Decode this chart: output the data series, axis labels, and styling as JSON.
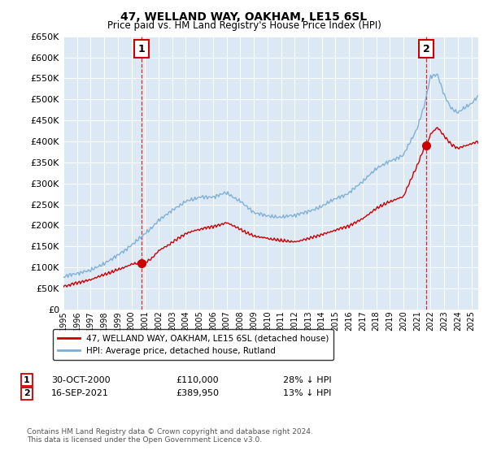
{
  "title": "47, WELLAND WAY, OAKHAM, LE15 6SL",
  "subtitle": "Price paid vs. HM Land Registry's House Price Index (HPI)",
  "legend_line1": "47, WELLAND WAY, OAKHAM, LE15 6SL (detached house)",
  "legend_line2": "HPI: Average price, detached house, Rutland",
  "annotation1_label": "1",
  "annotation1_date": "30-OCT-2000",
  "annotation1_price": "£110,000",
  "annotation1_hpi": "28% ↓ HPI",
  "annotation2_label": "2",
  "annotation2_date": "16-SEP-2021",
  "annotation2_price": "£389,950",
  "annotation2_hpi": "13% ↓ HPI",
  "footer": "Contains HM Land Registry data © Crown copyright and database right 2024.\nThis data is licensed under the Open Government Licence v3.0.",
  "red_color": "#cc0000",
  "blue_color": "#7aadd4",
  "annotation_line_color": "#cc0000",
  "plot_bg_color": "#dce9f5",
  "grid_color": "#ffffff",
  "fig_bg_color": "#ffffff",
  "ylim": [
    0,
    650000
  ],
  "yticks": [
    0,
    50000,
    100000,
    150000,
    200000,
    250000,
    300000,
    350000,
    400000,
    450000,
    500000,
    550000,
    600000,
    650000
  ],
  "sale1_t": 2000.75,
  "sale1_v": 110000,
  "sale2_t": 2021.667,
  "sale2_v": 389950
}
